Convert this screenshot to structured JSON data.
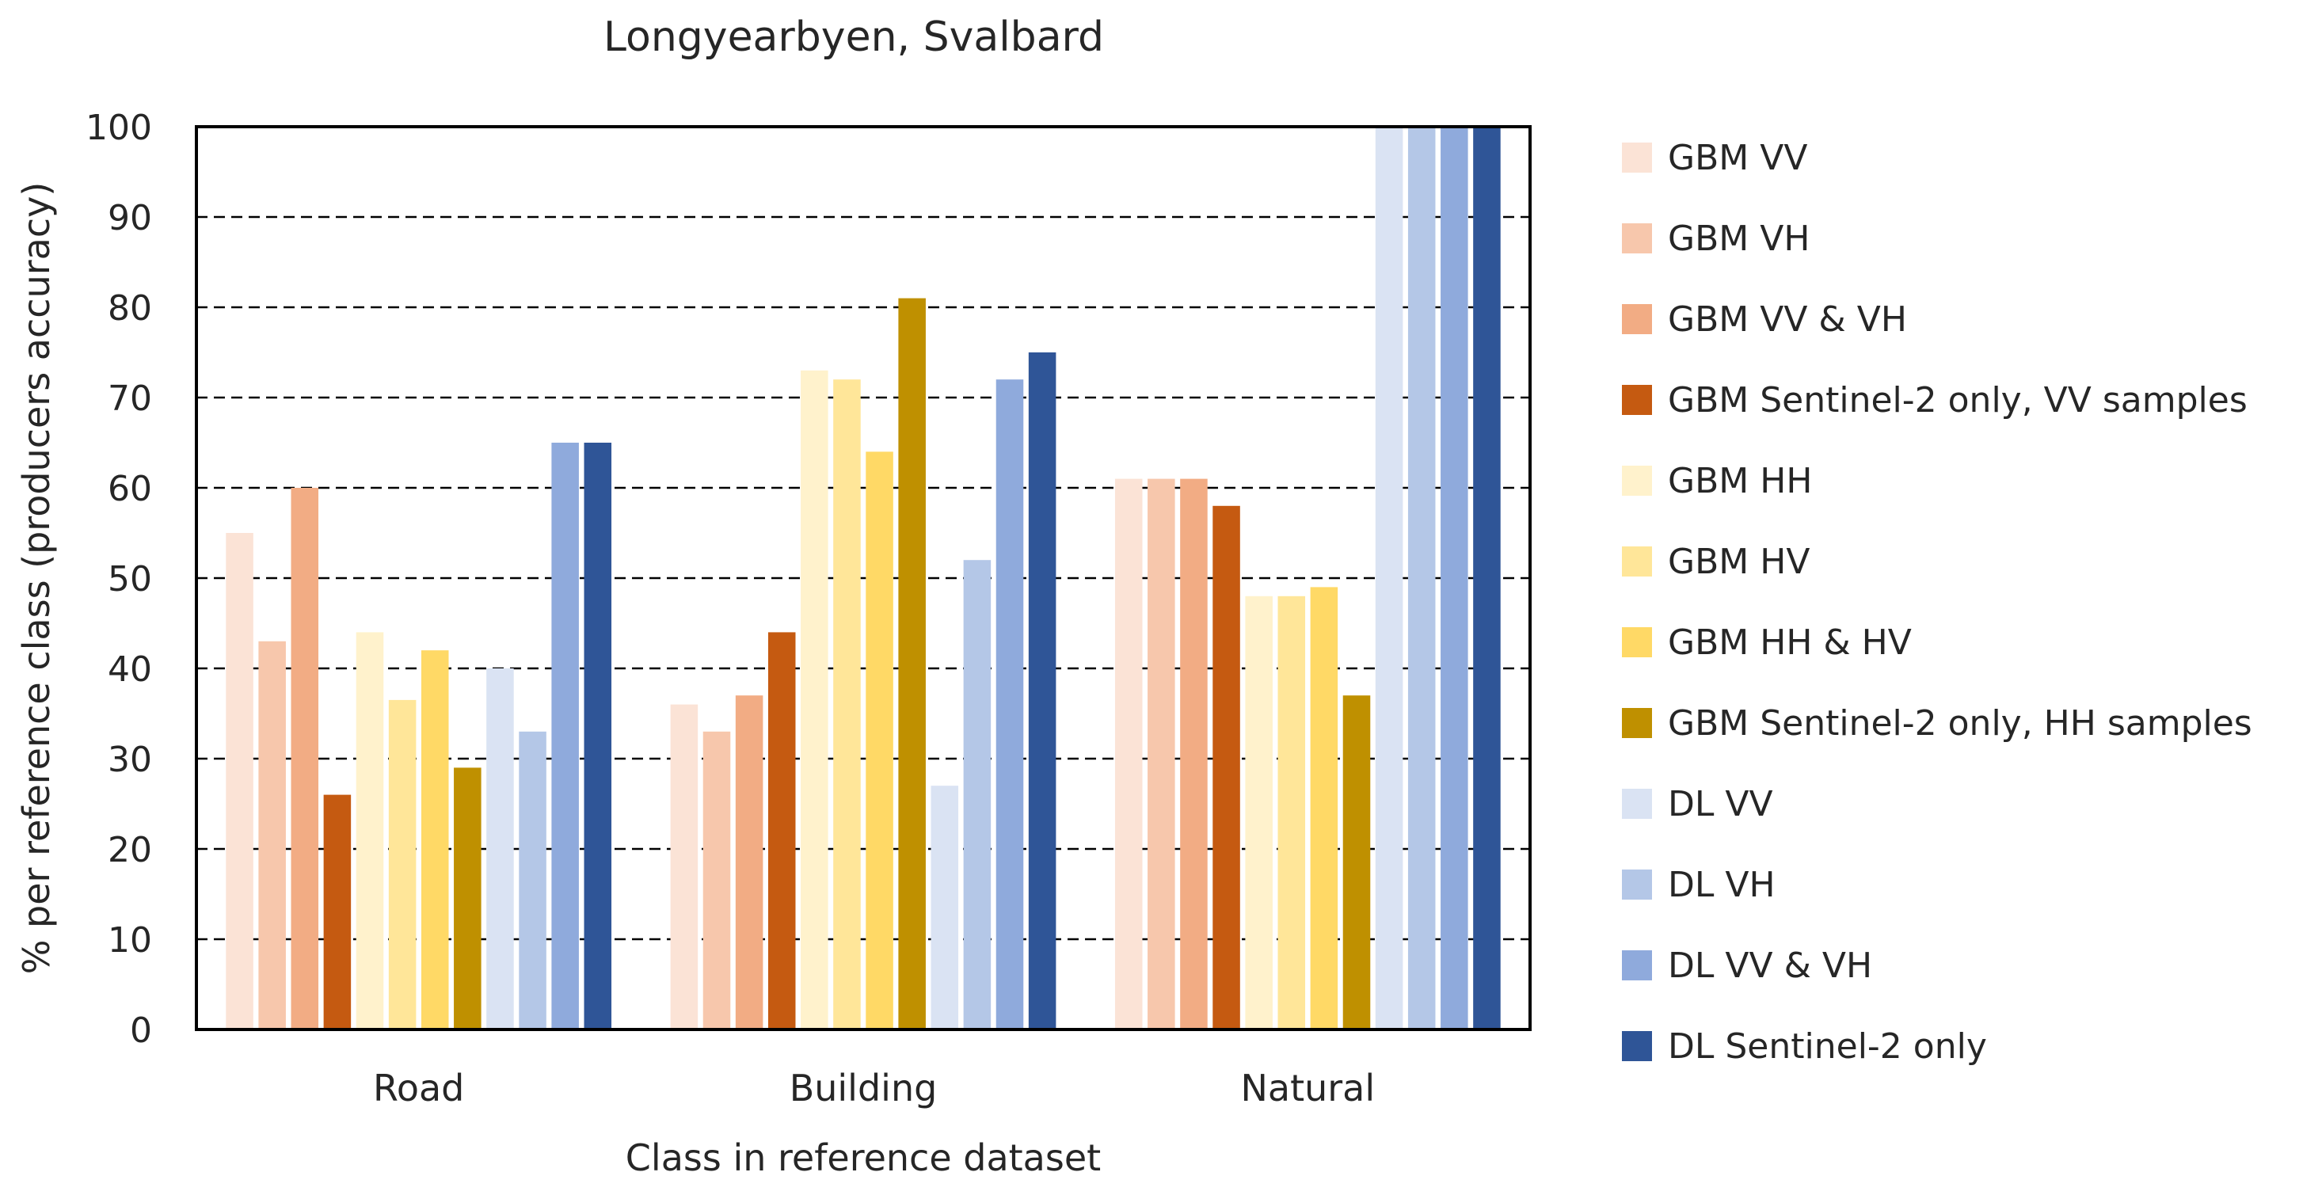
{
  "chart_data": {
    "type": "bar",
    "title": "Longyearbyen, Svalbard",
    "xlabel": "Class in reference dataset",
    "ylabel": "% per reference class (producers accuracy)",
    "ylim": [
      0,
      100
    ],
    "yticks": [
      0,
      10,
      20,
      30,
      40,
      50,
      60,
      70,
      80,
      90,
      100
    ],
    "grid": "dashed horizontal",
    "legend_position": "right",
    "categories": [
      "Road",
      "Building",
      "Natural"
    ],
    "series": [
      {
        "name": "GBM VV",
        "color": "#FBE3D6",
        "values": [
          55,
          36,
          61
        ]
      },
      {
        "name": "GBM VH",
        "color": "#F7C7AC",
        "values": [
          43,
          33,
          61
        ]
      },
      {
        "name": "GBM VV & VH",
        "color": "#F2AC84",
        "values": [
          60,
          37,
          61
        ]
      },
      {
        "name": "GBM Sentinel-2 only, VV samples",
        "color": "#C55A11",
        "values": [
          26,
          44,
          58
        ]
      },
      {
        "name": "GBM HH",
        "color": "#FFF2CC",
        "values": [
          44,
          73,
          48
        ]
      },
      {
        "name": "GBM HV",
        "color": "#FFE699",
        "values": [
          36.5,
          72,
          48
        ]
      },
      {
        "name": "GBM HH & HV",
        "color": "#FFD966",
        "values": [
          42,
          64,
          49
        ]
      },
      {
        "name": "GBM Sentinel-2 only, HH samples",
        "color": "#BF9000",
        "values": [
          29,
          81,
          37
        ]
      },
      {
        "name": "DL VV",
        "color": "#DAE3F3",
        "values": [
          40,
          27,
          100
        ]
      },
      {
        "name": "DL VH",
        "color": "#B4C7E7",
        "values": [
          33,
          52,
          100
        ]
      },
      {
        "name": "DL VV & VH",
        "color": "#8FAADC",
        "values": [
          65,
          72,
          100
        ]
      },
      {
        "name": "DL Sentinel-2 only",
        "color": "#2F5597",
        "values": [
          65,
          75,
          100
        ]
      }
    ]
  }
}
